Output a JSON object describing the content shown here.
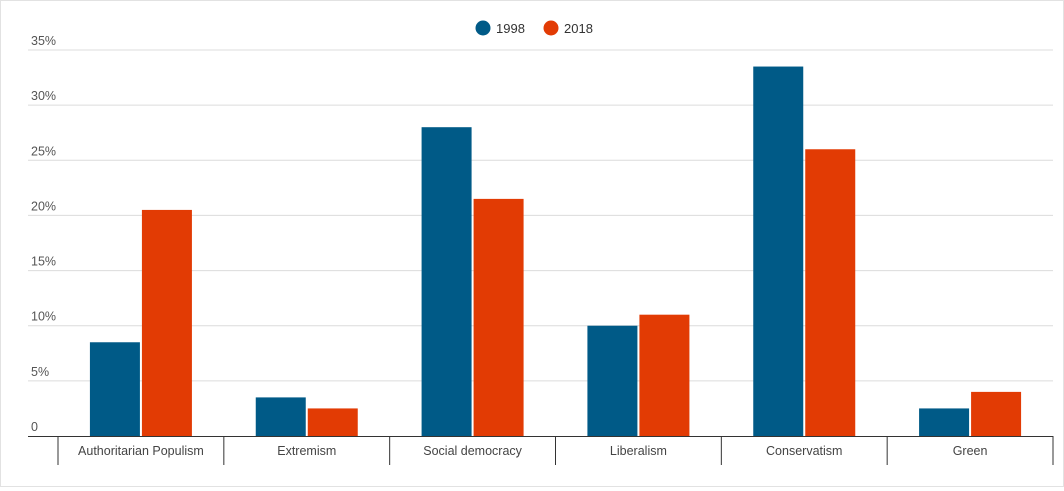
{
  "chart_data": {
    "type": "bar",
    "categories": [
      "Authoritarian Populism",
      "Extremism",
      "Social democracy",
      "Liberalism",
      "Conservatism",
      "Green"
    ],
    "series": [
      {
        "name": "1998",
        "values": [
          8.5,
          3.5,
          28.0,
          10.0,
          33.5,
          2.5
        ],
        "color": "#005a87"
      },
      {
        "name": "2018",
        "values": [
          20.5,
          2.5,
          21.5,
          11.0,
          26.0,
          4.0
        ],
        "color": "#e23b04"
      }
    ],
    "y_ticks": [
      0,
      5,
      10,
      15,
      20,
      25,
      30,
      35
    ],
    "y_tick_labels": [
      "0",
      "5%",
      "10%",
      "15%",
      "20%",
      "25%",
      "30%",
      "35%"
    ],
    "ylim": [
      0,
      35
    ],
    "title": "",
    "xlabel": "",
    "ylabel": "",
    "legend_position": "top-center",
    "grid": true
  }
}
